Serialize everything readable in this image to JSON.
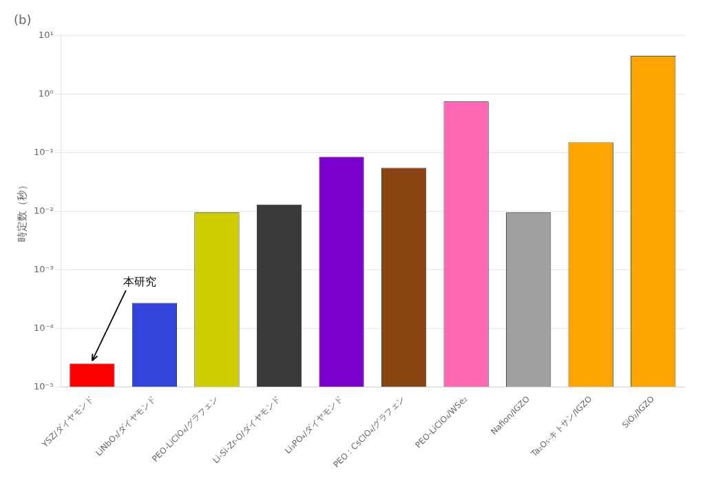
{
  "chart_data": {
    "type": "bar",
    "title": "(b)",
    "categories": [
      "YSZ/ダイヤモンド",
      "LiNbO₃/ダイヤモンド",
      "PEO-LiClO₄/グラフェン",
      "Li-Si-Zr-O/ダイヤモンド",
      "Li₃PO₄/ダイヤモンド",
      "PEO：CsClO₄/グラフェン",
      "PEO-LiClO₄/WSe₂",
      "Nafion/IGZO",
      "Ta₂O₅-キトサン/IGZO",
      "SiO₂/IGZO"
    ],
    "values": [
      2.5e-05,
      0.00027,
      0.0095,
      0.013,
      0.085,
      0.055,
      0.75,
      0.0095,
      0.15,
      4.5
    ],
    "colors": [
      "#FF0000",
      "#3344DD",
      "#CCCC00",
      "#3A3A3A",
      "#7B00CC",
      "#8B4513",
      "#FF69B4",
      "#A0A0A0",
      "#FFA500",
      "#FFA500"
    ],
    "ylabel": "時定数（秒）",
    "log": "y",
    "ylim": [
      1e-05,
      10
    ],
    "yticks": [
      {
        "value": 1e-05,
        "label": "10⁻⁵"
      },
      {
        "value": 0.0001,
        "label": "10⁻⁴"
      },
      {
        "value": 0.001,
        "label": "10⁻³"
      },
      {
        "value": 0.01,
        "label": "10⁻²"
      },
      {
        "value": 0.1,
        "label": "10⁻¹"
      },
      {
        "value": 1,
        "label": "10⁰"
      },
      {
        "value": 10,
        "label": "10¹"
      }
    ],
    "grid": true,
    "annotations": [
      {
        "text": "本研究",
        "category": "YSZ/ダイヤモンド",
        "value": 2.5e-05
      }
    ]
  }
}
